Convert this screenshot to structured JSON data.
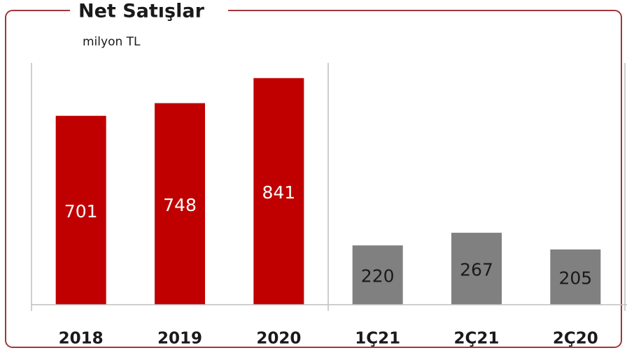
{
  "chart_data": {
    "type": "bar",
    "title": "Net Satışlar",
    "subtitle": "milyon TL",
    "categories": [
      "2018",
      "2019",
      "2020",
      "1Ç21",
      "2Ç21",
      "2Ç20"
    ],
    "values": [
      701,
      748,
      841,
      220,
      267,
      205
    ],
    "colors": [
      "#c00000",
      "#c00000",
      "#c00000",
      "#808080",
      "#808080",
      "#808080"
    ],
    "label_colors": [
      "#ffffff",
      "#ffffff",
      "#ffffff",
      "#1a1a1a",
      "#1a1a1a",
      "#1a1a1a"
    ],
    "ylim": [
      0,
      900
    ]
  }
}
